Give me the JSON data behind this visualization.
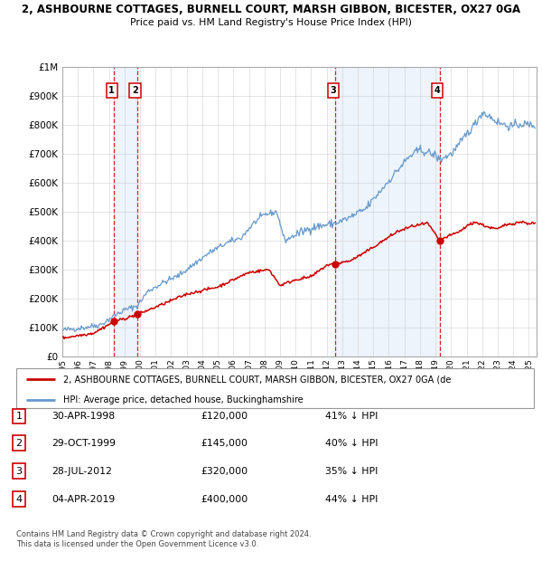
{
  "title": "2, ASHBOURNE COTTAGES, BURNELL COURT, MARSH GIBBON, BICESTER, OX27 0GA",
  "subtitle": "Price paid vs. HM Land Registry's House Price Index (HPI)",
  "legend_property": "2, ASHBOURNE COTTAGES, BURNELL COURT, MARSH GIBBON, BICESTER, OX27 0GA (de",
  "legend_hpi": "HPI: Average price, detached house, Buckinghamshire",
  "footer1": "Contains HM Land Registry data © Crown copyright and database right 2024.",
  "footer2": "This data is licensed under the Open Government Licence v3.0.",
  "xlim_start": 1995.0,
  "xlim_end": 2025.5,
  "ylim_min": 0,
  "ylim_max": 1000000,
  "yticks": [
    0,
    100000,
    200000,
    300000,
    400000,
    500000,
    600000,
    700000,
    800000,
    900000,
    1000000
  ],
  "ytick_labels": [
    "£0",
    "£100K",
    "£200K",
    "£300K",
    "£400K",
    "£500K",
    "£600K",
    "£700K",
    "£800K",
    "£900K",
    "£1M"
  ],
  "transactions": [
    {
      "num": 1,
      "date_x": 1998.33,
      "price": 120000,
      "date_str": "30-APR-1998",
      "pct": "41% ↓ HPI"
    },
    {
      "num": 2,
      "date_x": 1999.83,
      "price": 145000,
      "date_str": "29-OCT-1999",
      "pct": "40% ↓ HPI"
    },
    {
      "num": 3,
      "date_x": 2012.56,
      "price": 320000,
      "date_str": "28-JUL-2012",
      "pct": "35% ↓ HPI"
    },
    {
      "num": 4,
      "date_x": 2019.26,
      "price": 400000,
      "date_str": "04-APR-2019",
      "pct": "44% ↓ HPI"
    }
  ],
  "prices": [
    "£120,000",
    "£145,000",
    "£320,000",
    "£400,000"
  ],
  "property_color": "#cc0000",
  "hpi_color": "#6699cc",
  "vline_color": "#cc0000",
  "shade_color": "#cce0f5",
  "dot_color": "#cc0000",
  "background_color": "#ffffff",
  "grid_color": "#cccccc"
}
